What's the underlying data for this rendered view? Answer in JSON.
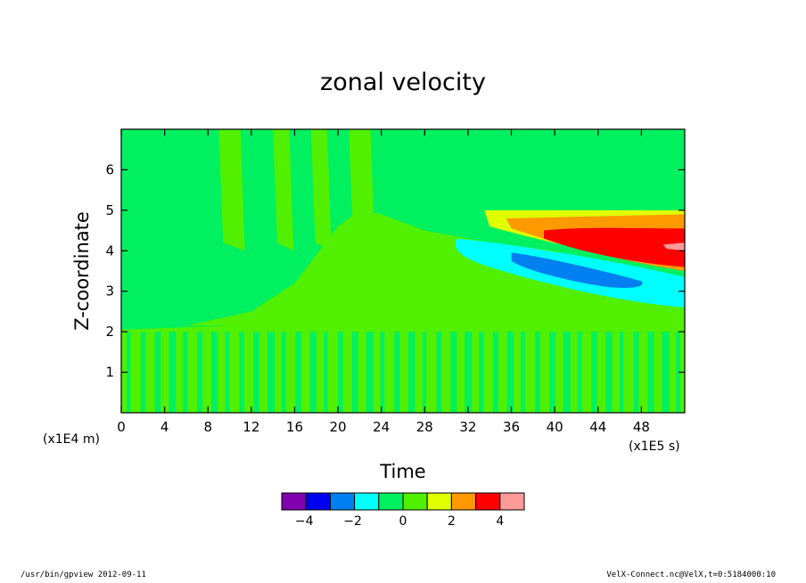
{
  "chart_data": {
    "type": "heatmap",
    "title": "zonal velocity",
    "xlabel": "Time",
    "ylabel": "Z-coordinate",
    "x_unit": "(x1E5 s)",
    "y_unit": "(x1E4 m)",
    "xlim": [
      0,
      52
    ],
    "ylim": [
      0,
      7
    ],
    "x_ticks": [
      "0",
      "4",
      "8",
      "12",
      "16",
      "20",
      "24",
      "28",
      "32",
      "36",
      "40",
      "44",
      "48"
    ],
    "y_ticks": [
      "1",
      "2",
      "3",
      "4",
      "5",
      "6"
    ],
    "colorbar": {
      "colors": [
        "#8000b0",
        "#0000f0",
        "#0080f0",
        "#00ffff",
        "#00f060",
        "#50f000",
        "#e0ff00",
        "#ff9900",
        "#ff0000",
        "#ff9a9a"
      ],
      "tick_labels": [
        "−4",
        "−2",
        "0",
        "2",
        "4"
      ]
    },
    "features": [
      {
        "level": 4.5,
        "description": "max positive core near x=44-52, z=4.2"
      },
      {
        "level": -2.5,
        "description": "negative core near x=36-48, z=3.3"
      }
    ]
  },
  "footer": {
    "left": "/usr/bin/gpview  2012-09-11",
    "right": "VelX-Connect.nc@VelX,t=0:5184000:10"
  }
}
